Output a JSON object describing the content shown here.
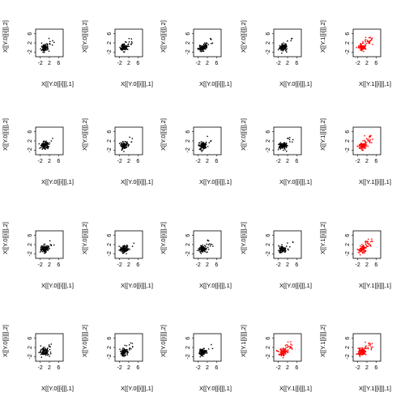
{
  "chart_data": {
    "type": "scatter",
    "layout": "4x5 grid of scatter plot panels",
    "colors": {
      "black": "#000000",
      "red": "#ff0000"
    },
    "axis_ticks": {
      "x": [
        "-2",
        "2",
        "6"
      ],
      "y": [
        "-2",
        "2",
        "6"
      ]
    },
    "axis_ranges": {
      "x": [
        -4,
        8
      ],
      "y": [
        -4,
        8
      ]
    },
    "labels": {
      "x0": "X[[Y.0[[i]]],1]",
      "y0": "X[[Y.0[[i]]],2]",
      "x1": "X[[Y.1[[i]]],1]",
      "y1": "X[[Y.1[[i]]],2]"
    },
    "panels": [
      {
        "row": 1,
        "col": 1,
        "group": "Y.0",
        "color": "black"
      },
      {
        "row": 1,
        "col": 2,
        "group": "Y.0",
        "color": "black"
      },
      {
        "row": 1,
        "col": 3,
        "group": "Y.0",
        "color": "black"
      },
      {
        "row": 1,
        "col": 4,
        "group": "Y.0",
        "color": "black"
      },
      {
        "row": 1,
        "col": 5,
        "group": "Y.1",
        "color": "red"
      },
      {
        "row": 2,
        "col": 1,
        "group": "Y.0",
        "color": "black"
      },
      {
        "row": 2,
        "col": 2,
        "group": "Y.0",
        "color": "black"
      },
      {
        "row": 2,
        "col": 3,
        "group": "Y.0",
        "color": "black"
      },
      {
        "row": 2,
        "col": 4,
        "group": "Y.0",
        "color": "black"
      },
      {
        "row": 2,
        "col": 5,
        "group": "Y.1",
        "color": "red"
      },
      {
        "row": 3,
        "col": 1,
        "group": "Y.0",
        "color": "black"
      },
      {
        "row": 3,
        "col": 2,
        "group": "Y.0",
        "color": "black"
      },
      {
        "row": 3,
        "col": 3,
        "group": "Y.0",
        "color": "black"
      },
      {
        "row": 3,
        "col": 4,
        "group": "Y.0",
        "color": "black"
      },
      {
        "row": 3,
        "col": 5,
        "group": "Y.1",
        "color": "red"
      },
      {
        "row": 4,
        "col": 1,
        "group": "Y.0",
        "color": "black"
      },
      {
        "row": 4,
        "col": 2,
        "group": "Y.0",
        "color": "black"
      },
      {
        "row": 4,
        "col": 3,
        "group": "Y.0",
        "color": "black"
      },
      {
        "row": 4,
        "col": 4,
        "group": "Y.1",
        "color": "red"
      },
      {
        "row": 4,
        "col": 5,
        "group": "Y.1",
        "color": "red"
      }
    ]
  }
}
